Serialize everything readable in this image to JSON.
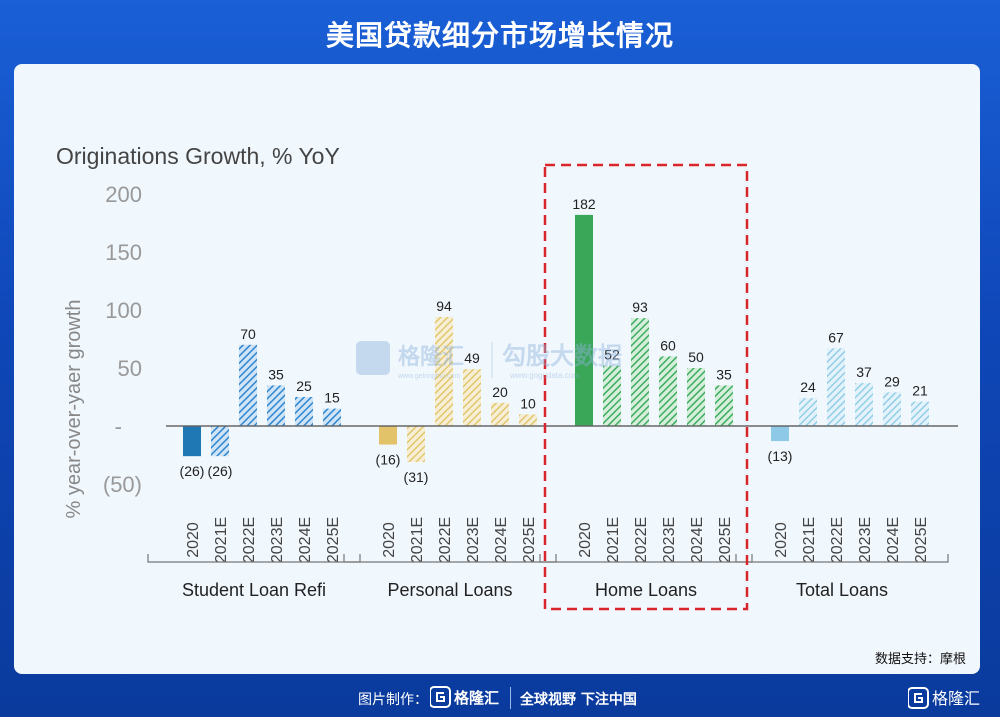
{
  "header": {
    "title": "美国贷款细分市场增长情况"
  },
  "source": "数据支持：摩根",
  "footer": {
    "made_by": "图片制作：",
    "brand": "格隆汇",
    "slogan": "全球视野 下注中国",
    "corner_brand": "格隆汇"
  },
  "watermark": {
    "brand": "格隆汇",
    "site": "www.gelonghui.com",
    "brand2": "勾股大数据",
    "site2": "www.gogudata.com"
  },
  "chart_data": {
    "type": "bar",
    "title": "Originations Growth, % YoY",
    "ylabel": "% year-over-yaer growth",
    "ylim": [
      -50,
      200
    ],
    "yticks": [
      {
        "value": 200,
        "label": "200"
      },
      {
        "value": 150,
        "label": "150"
      },
      {
        "value": 100,
        "label": "100"
      },
      {
        "value": 50,
        "label": "50"
      },
      {
        "value": 0,
        "label": "-"
      },
      {
        "value": -50,
        "label": "(50)"
      }
    ],
    "categories": [
      "2020",
      "2021E",
      "2022E",
      "2023E",
      "2024E",
      "2025E"
    ],
    "highlight_group": "Home Loans",
    "groups": [
      {
        "name": "Student Loan Refi",
        "solid_color": "#1f77b4",
        "color": "#3a8fd6",
        "values": [
          -26,
          -26,
          70,
          35,
          25,
          15
        ],
        "labels": [
          "(26)",
          "(26)",
          "70",
          "35",
          "25",
          "15"
        ]
      },
      {
        "name": "Personal Loans",
        "solid_color": "#e2c36a",
        "color": "#e8cf7c",
        "values": [
          -16,
          -31,
          94,
          49,
          20,
          10
        ],
        "labels": [
          "(16)",
          "(31)",
          "94",
          "49",
          "20",
          "10"
        ]
      },
      {
        "name": "Home Loans",
        "solid_color": "#3aa657",
        "color": "#4cb56a",
        "values": [
          182,
          52,
          93,
          60,
          50,
          35
        ],
        "labels": [
          "182",
          "52",
          "93",
          "60",
          "50",
          "35"
        ]
      },
      {
        "name": "Total Loans",
        "solid_color": "#8ec9e8",
        "color": "#a5d6ef",
        "values": [
          -13,
          24,
          67,
          37,
          29,
          21
        ],
        "labels": [
          "(13)",
          "24",
          "67",
          "37",
          "29",
          "21"
        ]
      }
    ]
  }
}
